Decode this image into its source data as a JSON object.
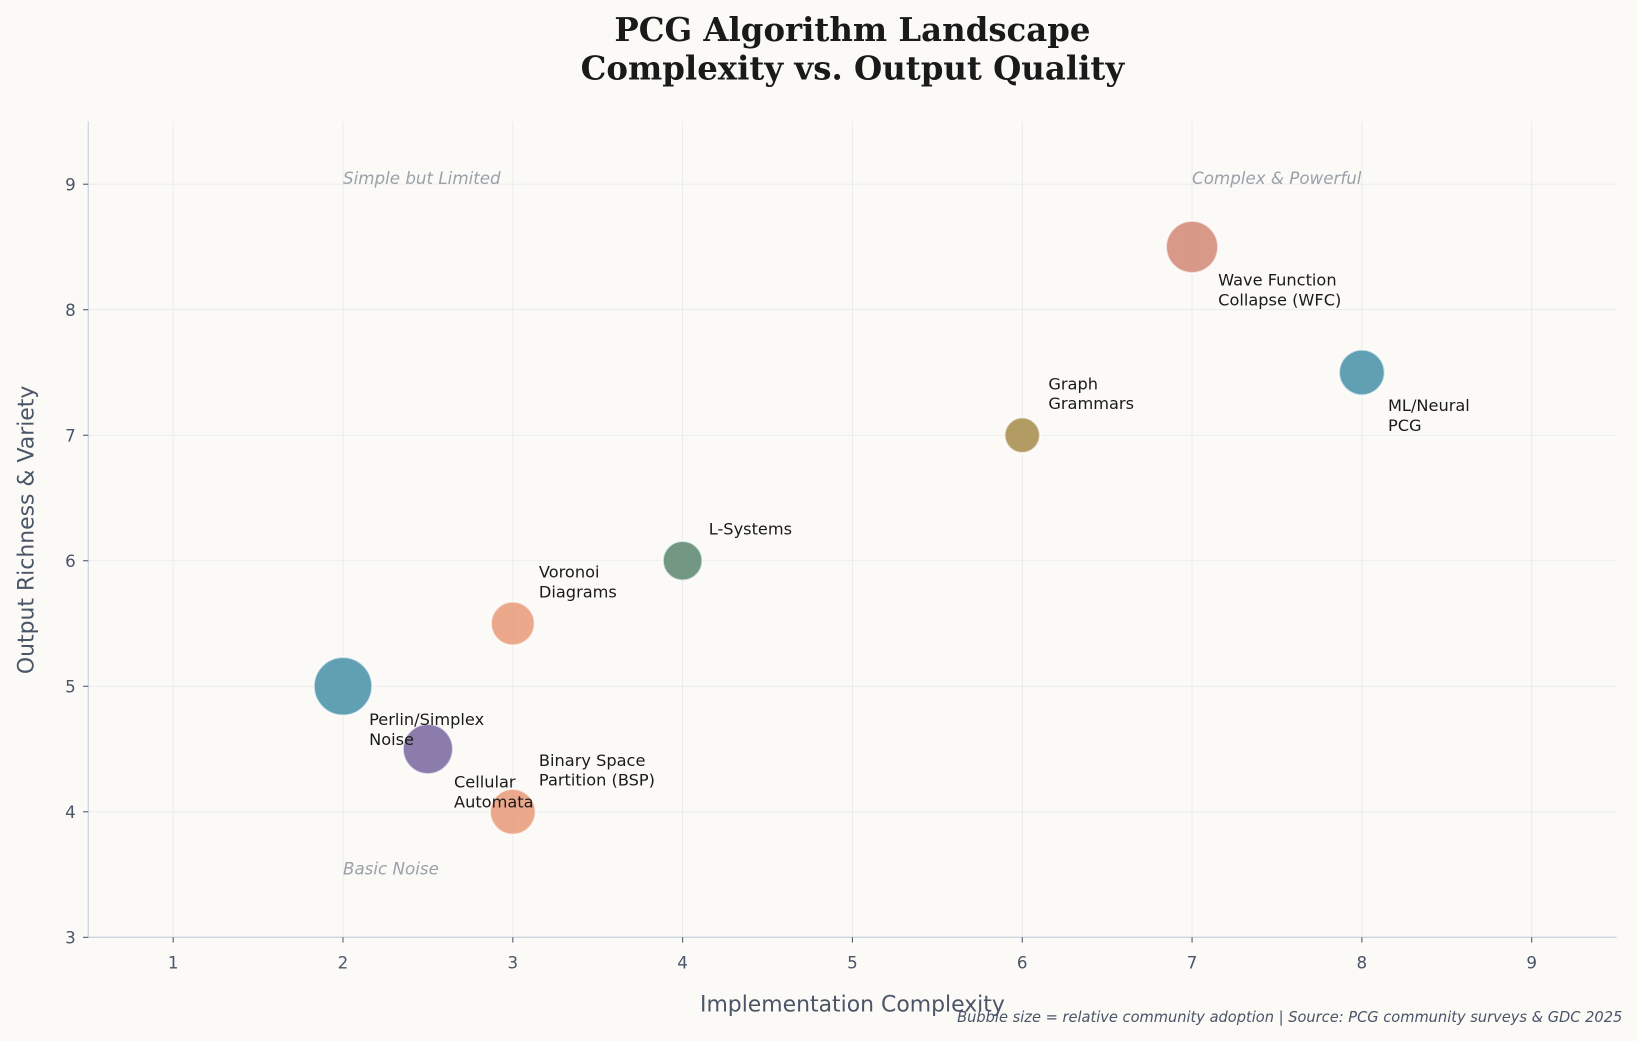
{
  "chart_data": {
    "type": "scatter",
    "title": "PCG Algorithm Landscape",
    "subtitle": "Complexity vs. Output Quality",
    "xlabel": "Implementation Complexity",
    "ylabel": "Output Richness & Variety",
    "xlim": [
      0.5,
      9.5
    ],
    "ylim": [
      3,
      9.5
    ],
    "xticks": [
      "1",
      "2",
      "3",
      "4",
      "5",
      "6",
      "7",
      "8",
      "9"
    ],
    "yticks": [
      "3",
      "4",
      "5",
      "6",
      "7",
      "8",
      "9"
    ],
    "grid": true,
    "points": [
      {
        "label": [
          "Perlin/Simplex",
          "Noise"
        ],
        "x": 2,
        "y": 5,
        "size": 98,
        "color": "#4a93a8",
        "label_position": "below-right"
      },
      {
        "label": [
          "Cellular",
          "Automata"
        ],
        "x": 2.5,
        "y": 4.5,
        "size": 72,
        "color": "#7b6aa0",
        "label_position": "below-right"
      },
      {
        "label": [
          "Binary Space",
          "Partition (BSP)"
        ],
        "x": 3,
        "y": 4,
        "size": 60,
        "color": "#e89c7c",
        "label_position": "above-right"
      },
      {
        "label": [
          "Voronoi",
          "Diagrams"
        ],
        "x": 3,
        "y": 5.5,
        "size": 55,
        "color": "#e89c7c",
        "label_position": "above-right"
      },
      {
        "label": [
          "L-Systems"
        ],
        "x": 4,
        "y": 6,
        "size": 45,
        "color": "#5f8a74",
        "label_position": "above-right"
      },
      {
        "label": [
          "Graph",
          "Grammars"
        ],
        "x": 6,
        "y": 7,
        "size": 36,
        "color": "#a88d50",
        "label_position": "above-right"
      },
      {
        "label": [
          "Wave Function",
          "Collapse (WFC)"
        ],
        "x": 7,
        "y": 8.5,
        "size": 78,
        "color": "#d48b79",
        "label_position": "below-right"
      },
      {
        "label": [
          "ML/Neural",
          "PCG"
        ],
        "x": 8,
        "y": 7.5,
        "size": 60,
        "color": "#4a93a8",
        "label_position": "below-right"
      }
    ],
    "annotations": [
      {
        "text": "Simple but Limited",
        "x": 2,
        "y": 9
      },
      {
        "text": "Complex & Powerful",
        "x": 7,
        "y": 9
      },
      {
        "text": "Basic Noise",
        "x": 2,
        "y": 3.5
      }
    ],
    "footnote": "Bubble size = relative community adoption  |  Source: PCG community surveys & GDC 2025"
  }
}
